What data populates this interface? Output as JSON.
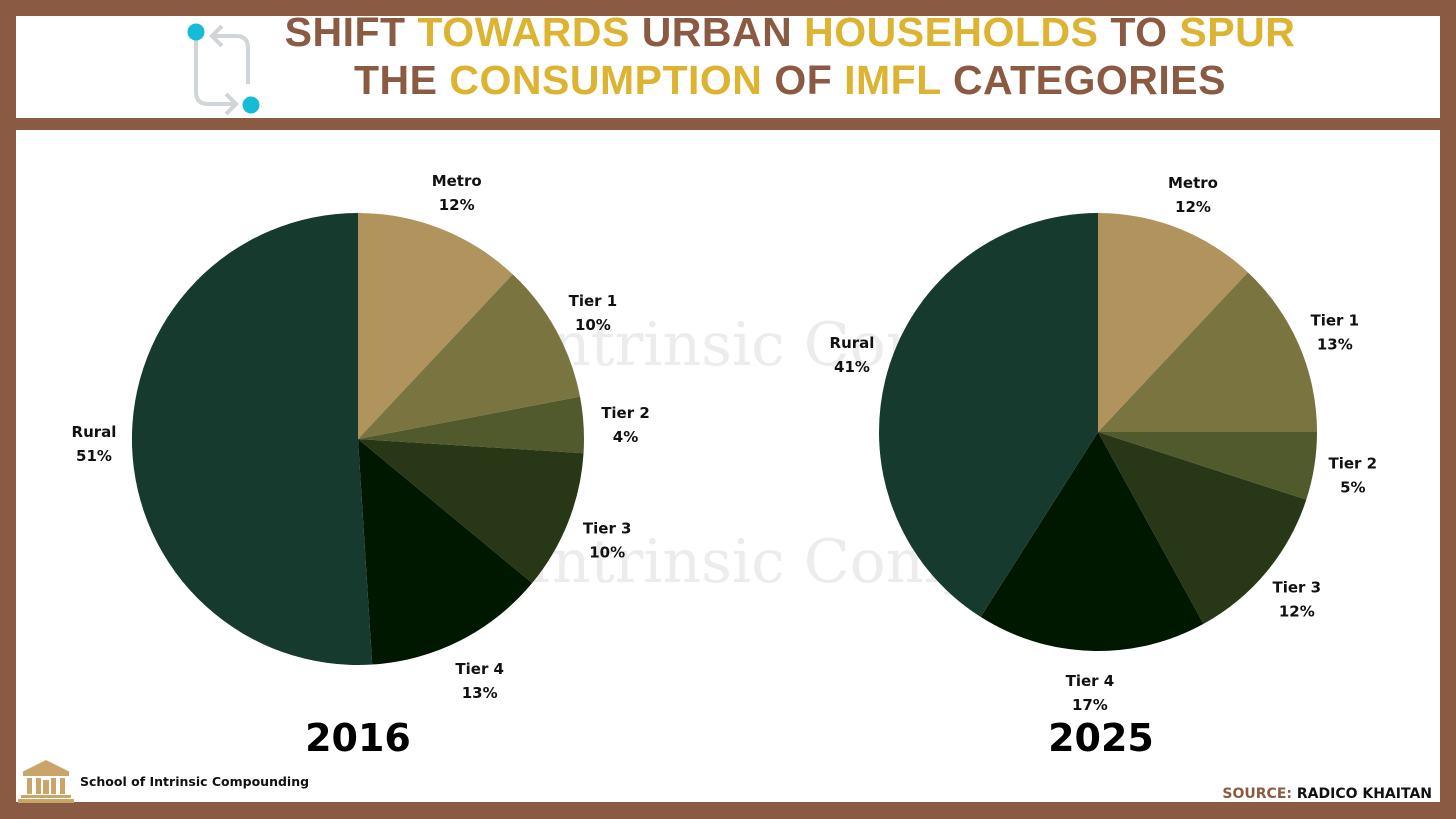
{
  "header": {
    "title_line1": [
      {
        "text": "SHIFT ",
        "hl": false
      },
      {
        "text": "TOWARDS ",
        "hl": true
      },
      {
        "text": "URBAN ",
        "hl": false
      },
      {
        "text": "HOUSEHOLDS ",
        "hl": true
      },
      {
        "text": "TO ",
        "hl": false
      },
      {
        "text": "SPUR",
        "hl": true
      }
    ],
    "title_line2": [
      {
        "text": "THE ",
        "hl": false
      },
      {
        "text": "CONSUMPTION ",
        "hl": true
      },
      {
        "text": "OF ",
        "hl": false
      },
      {
        "text": "IMFL ",
        "hl": true
      },
      {
        "text": "CATEGORIES",
        "hl": false
      }
    ],
    "icon": "swap-arrows-icon"
  },
  "watermark": "School of Intrinsic Compounding",
  "colors": {
    "frame": "#8b5a43",
    "title_accent": "#dcb431",
    "Metro": "#b1935e",
    "Tier 1": "#7a7540",
    "Tier 2": "#515a2c",
    "Tier 3": "#283817",
    "Tier 4": "#001800",
    "Rural": "#173a2f"
  },
  "chart_data": [
    {
      "type": "pie",
      "title": "2016",
      "slices": [
        {
          "label": "Metro",
          "value": 12,
          "display": "12%"
        },
        {
          "label": "Tier 1",
          "value": 10,
          "display": "10%"
        },
        {
          "label": "Tier 2",
          "value": 4,
          "display": "4%"
        },
        {
          "label": "Tier 3",
          "value": 10,
          "display": "10%"
        },
        {
          "label": "Tier 4",
          "value": 13,
          "display": "13%"
        },
        {
          "label": "Rural",
          "value": 51,
          "display": "51%"
        }
      ]
    },
    {
      "type": "pie",
      "title": "2025",
      "slices": [
        {
          "label": "Metro",
          "value": 12,
          "display": "12%"
        },
        {
          "label": "Tier 1",
          "value": 13,
          "display": "13%"
        },
        {
          "label": "Tier 2",
          "value": 5,
          "display": "5%"
        },
        {
          "label": "Tier 3",
          "value": 12,
          "display": "12%"
        },
        {
          "label": "Tier 4",
          "value": 17,
          "display": "17%"
        },
        {
          "label": "Rural",
          "value": 41,
          "display": "41%"
        }
      ]
    }
  ],
  "footer": {
    "brand_name": "School of Intrinsic Compounding",
    "brand_icon": "institution-building-icon",
    "source_label": "SOURCE:",
    "source_value": "RADICO KHAITAN"
  }
}
